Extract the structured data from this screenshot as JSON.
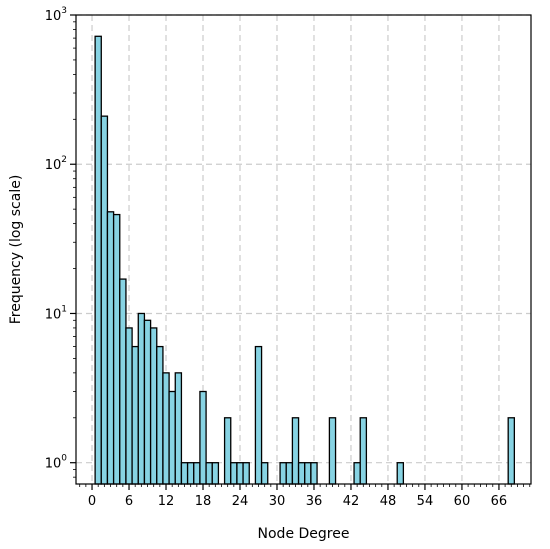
{
  "chart_data": {
    "type": "bar",
    "title": "",
    "xlabel": "Node Degree",
    "ylabel": "Frequency (log scale)",
    "yscale": "log",
    "xlim": [
      -2.6,
      71.2
    ],
    "ylim": [
      0.72,
      1000
    ],
    "grid": true,
    "grid_style": "dashed",
    "bar_color": "#87d3e3",
    "edge_color": "#000000",
    "bar_width": 1,
    "xticks": [
      0,
      6,
      12,
      18,
      24,
      30,
      36,
      42,
      48,
      54,
      60,
      66
    ],
    "yticks": [
      {
        "value": 1,
        "base": "10",
        "exp": "0"
      },
      {
        "value": 10,
        "base": "10",
        "exp": "1"
      },
      {
        "value": 100,
        "base": "10",
        "exp": "2"
      },
      {
        "value": 1000,
        "base": "10",
        "exp": "3"
      }
    ],
    "x": [
      1,
      2,
      3,
      4,
      5,
      6,
      7,
      8,
      9,
      10,
      11,
      12,
      13,
      14,
      15,
      16,
      17,
      18,
      19,
      20,
      22,
      23,
      24,
      25,
      27,
      28,
      31,
      32,
      33,
      34,
      35,
      36,
      39,
      43,
      44,
      50,
      68
    ],
    "values": [
      720,
      210,
      48,
      46,
      17,
      8,
      6,
      10,
      9,
      8,
      6,
      4,
      3,
      4,
      1,
      1,
      1,
      3,
      1,
      1,
      2,
      1,
      1,
      1,
      6,
      1,
      1,
      1,
      2,
      1,
      1,
      1,
      2,
      1,
      2,
      1,
      2
    ]
  }
}
